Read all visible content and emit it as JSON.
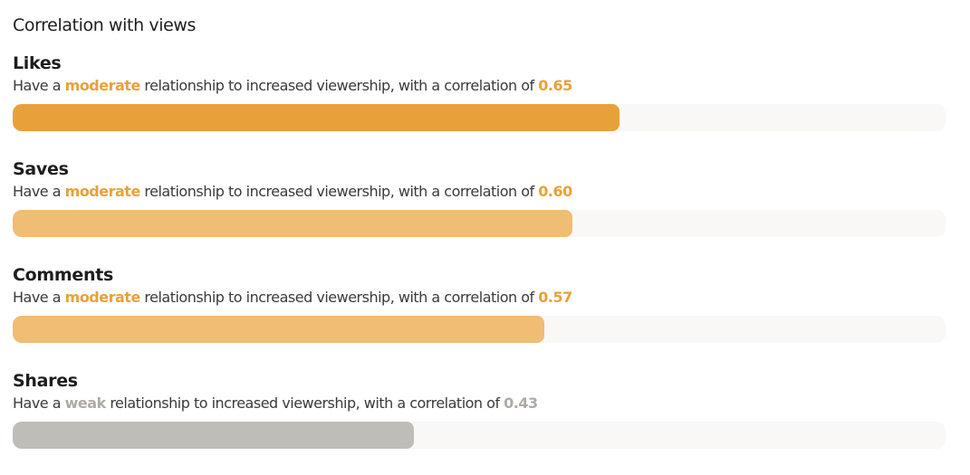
{
  "title": "Correlation with views",
  "metrics": [
    {
      "name": "Likes",
      "prefix": "Have a",
      "strength": "moderate",
      "suffix": "relationship to increased viewership, with a correlation of",
      "value_text": "0.65",
      "value": 0.65,
      "accent_color": "#e8a13a",
      "bar_color": "#e8a13a"
    },
    {
      "name": "Saves",
      "prefix": "Have a",
      "strength": "moderate",
      "suffix": "relationship to increased viewership, with a correlation of",
      "value_text": "0.60",
      "value": 0.6,
      "accent_color": "#e8a13a",
      "bar_color": "#efbd73"
    },
    {
      "name": "Comments",
      "prefix": "Have a",
      "strength": "moderate",
      "suffix": "relationship to increased viewership, with a correlation of",
      "value_text": "0.57",
      "value": 0.57,
      "accent_color": "#e8a13a",
      "bar_color": "#efbd73"
    },
    {
      "name": "Shares",
      "prefix": "Have a",
      "strength": "weak",
      "suffix": "relationship to increased viewership, with a correlation of",
      "value_text": "0.43",
      "value": 0.43,
      "accent_color": "#aeaba6",
      "bar_color": "#bfbdb8"
    }
  ],
  "track_color": "#f9f8f6"
}
